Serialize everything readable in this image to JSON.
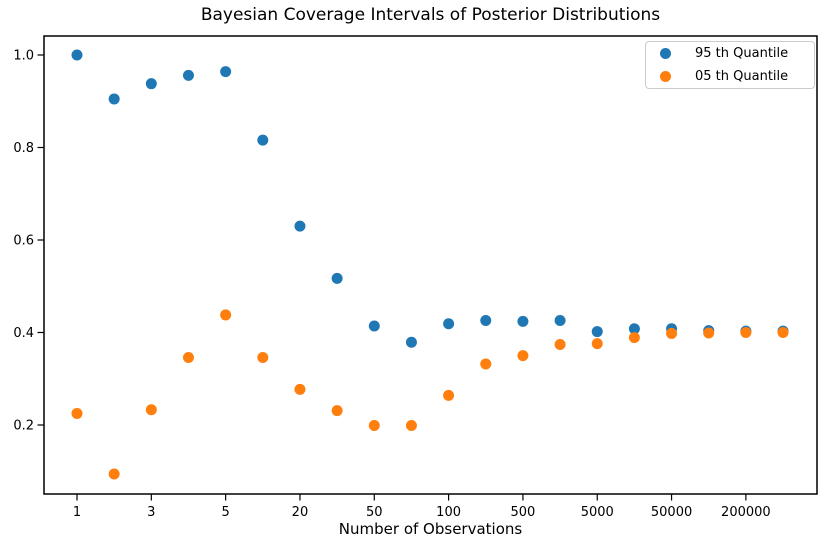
{
  "chart_data": {
    "type": "scatter",
    "title": "Bayesian Coverage Intervals of Posterior Distributions",
    "xlabel": "Number of Observations",
    "ylabel": "",
    "x_axis": {
      "scale": "20 evenly spaced sample-size positions, index 0-19; tick labels shown at even indices",
      "tick_indices": [
        0,
        2,
        4,
        6,
        8,
        10,
        12,
        14,
        16,
        18
      ],
      "tick_labels": [
        "1",
        "3",
        "5",
        "20",
        "50",
        "100",
        "500",
        "5000",
        "50000",
        "200000"
      ]
    },
    "y_axis": {
      "ticks": [
        0.2,
        0.4,
        0.6,
        0.8,
        1.0
      ],
      "tick_labels": [
        "0.2",
        "0.4",
        "0.6",
        "0.8",
        "1.0"
      ],
      "ylim": [
        0.049,
        1.045
      ]
    },
    "grid": false,
    "legend_position": "upper right",
    "series": [
      {
        "name": "95 th Quantile",
        "color": "#1f77b4",
        "x_index": [
          0,
          1,
          2,
          3,
          4,
          5,
          6,
          7,
          8,
          9,
          10,
          11,
          12,
          13,
          14,
          15,
          16,
          17,
          18,
          19
        ],
        "values": [
          1.0,
          0.905,
          0.938,
          0.956,
          0.964,
          0.816,
          0.63,
          0.517,
          0.414,
          0.379,
          0.419,
          0.426,
          0.424,
          0.426,
          0.402,
          0.408,
          0.408,
          0.404,
          0.403,
          0.403
        ]
      },
      {
        "name": "05 th Quantile",
        "color": "#ff7f0e",
        "x_index": [
          0,
          1,
          2,
          3,
          4,
          5,
          6,
          7,
          8,
          9,
          10,
          11,
          12,
          13,
          14,
          15,
          16,
          17,
          18,
          19
        ],
        "values": [
          0.225,
          0.094,
          0.233,
          0.346,
          0.438,
          0.346,
          0.277,
          0.231,
          0.199,
          0.199,
          0.264,
          0.332,
          0.35,
          0.374,
          0.376,
          0.389,
          0.398,
          0.399,
          0.4,
          0.4
        ]
      }
    ],
    "axis_color": "#000000",
    "legend_border_color": "#cccccc",
    "background_color": "#ffffff"
  }
}
